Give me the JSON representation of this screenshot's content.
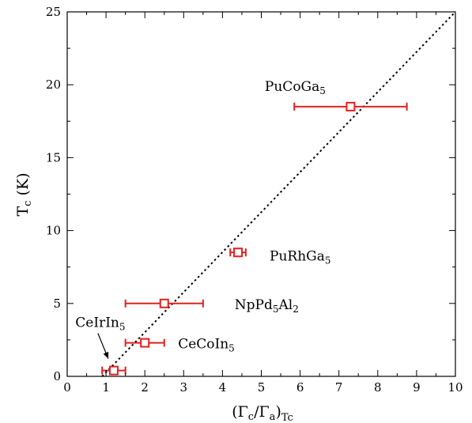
{
  "chart_data": {
    "type": "scatter",
    "title": "",
    "xlabel": "(Γc/Γa)Tc",
    "xlabel_parts": {
      "main": "(Γ",
      "s1": "c",
      "mid": "/Γ",
      "s2": "a",
      "close": ")",
      "s3": "Tc"
    },
    "ylabel": "Tc (K)",
    "ylabel_parts": {
      "main": "T",
      "sub": "c",
      "unit": " (K)"
    },
    "xlim": [
      0,
      10
    ],
    "ylim": [
      0,
      25
    ],
    "xticks": [
      0,
      1,
      2,
      3,
      4,
      5,
      6,
      7,
      8,
      9,
      10
    ],
    "yticks": [
      0,
      5,
      10,
      15,
      20,
      25
    ],
    "grid": false,
    "marker_color": "#e02020",
    "reference_line": {
      "style": "dotted",
      "color": "#000000",
      "x": [
        0.9,
        10
      ],
      "y": [
        0,
        25
      ]
    },
    "points": [
      {
        "label": "PuCoGa5",
        "label_parts": {
          "a": "PuCoGa",
          "s": "5",
          "b": ""
        },
        "x": 7.3,
        "y": 18.5,
        "xerr": [
          5.85,
          8.75
        ]
      },
      {
        "label": "PuRhGa5",
        "label_parts": {
          "a": "PuRhGa",
          "s": "5",
          "b": ""
        },
        "x": 4.4,
        "y": 8.5,
        "xerr": [
          4.2,
          4.6
        ]
      },
      {
        "label": "NpPd5Al2",
        "label_parts": {
          "a": "NpPd",
          "s": "5",
          "b": "Al",
          "s2": "2"
        },
        "x": 2.5,
        "y": 5.0,
        "xerr": [
          1.5,
          3.5
        ]
      },
      {
        "label": "CeCoIn5",
        "label_parts": {
          "a": "CeCoIn",
          "s": "5",
          "b": ""
        },
        "x": 2.0,
        "y": 2.3,
        "xerr": [
          1.5,
          2.5
        ]
      },
      {
        "label": "CeIrIn5",
        "label_parts": {
          "a": "CeIrIn",
          "s": "5",
          "b": ""
        },
        "x": 1.2,
        "y": 0.4,
        "xerr": [
          0.9,
          1.5
        ]
      }
    ]
  }
}
